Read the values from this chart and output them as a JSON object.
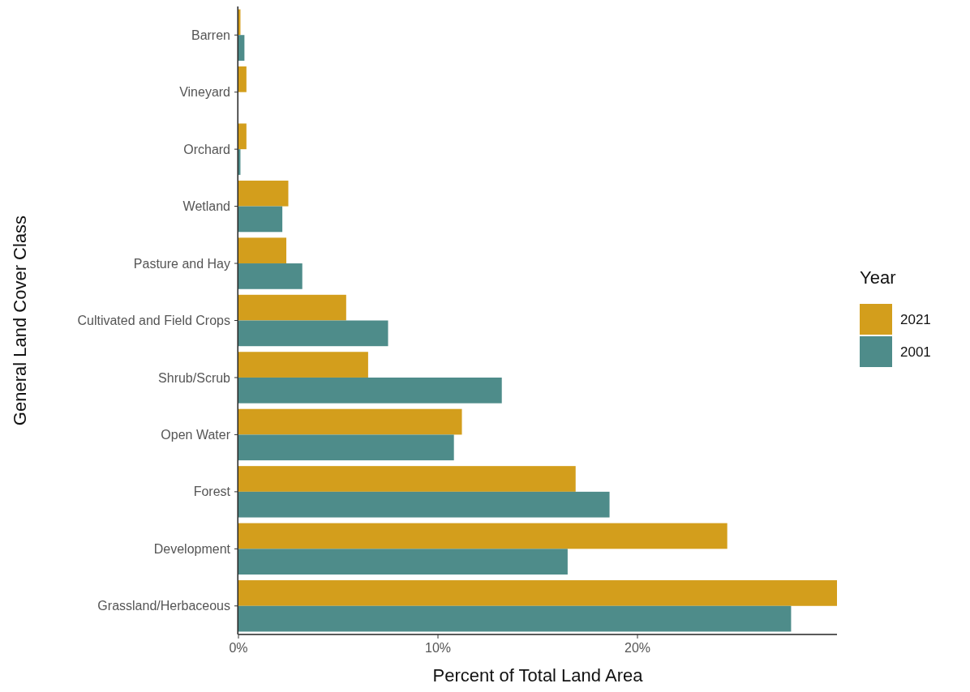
{
  "chart_data": {
    "type": "bar",
    "orientation": "horizontal",
    "xlabel": "Percent of Total Land Area",
    "ylabel": "General Land Cover Class",
    "legend_title": "Year",
    "legend": "right",
    "grid": false,
    "categories": [
      "Barren",
      "Vineyard",
      "Orchard",
      "Wetland",
      "Pasture and Hay",
      "Cultivated and Field Crops",
      "Shrub/Scrub",
      "Open Water",
      "Forest",
      "Development",
      "Grassland/Herbaceous"
    ],
    "series": [
      {
        "name": "2021",
        "color": "#d39e1c",
        "values": [
          0.1,
          0.4,
          0.4,
          2.5,
          2.4,
          5.4,
          6.5,
          11.2,
          16.9,
          24.5,
          30.0
        ]
      },
      {
        "name": "2001",
        "color": "#4e8c8a",
        "values": [
          0.3,
          0,
          0.1,
          2.2,
          3.2,
          7.5,
          13.2,
          10.8,
          18.6,
          16.5,
          27.7
        ]
      }
    ],
    "xlim": [
      0,
      30.0
    ],
    "xticks": [
      {
        "value": 0,
        "label": "0%"
      },
      {
        "value": 10,
        "label": "10%"
      },
      {
        "value": 20,
        "label": "20%"
      }
    ]
  }
}
